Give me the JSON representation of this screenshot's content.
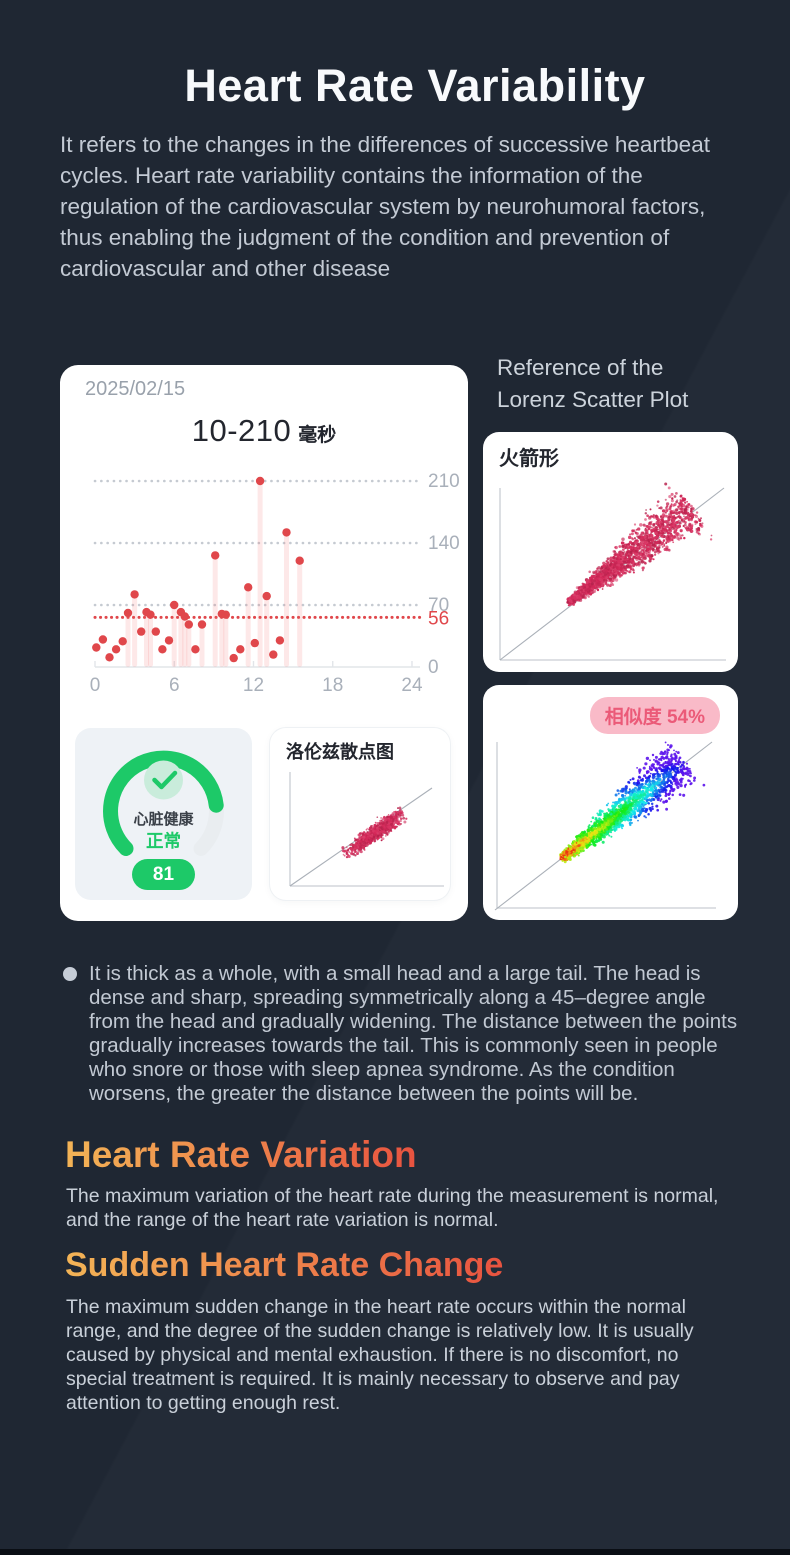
{
  "page": {
    "title": "Heart Rate Variability",
    "intro": "It refers to the changes in the differences of successive heartbeat cycles. Heart rate variability contains the information of the regulation of the cardiovascular system by neurohumoral factors, thus enabling the judgment of the condition and prevention of cardiovascular and other disease"
  },
  "colors": {
    "background": "#1f2733",
    "accent_green": "#1dc968",
    "dot_red": "#e0474b",
    "badge_pink_bg": "#f9bac8",
    "badge_pink_text": "#eb5a78",
    "heading_gradient": [
      "#f3b456",
      "#e85340"
    ],
    "grid_gray": "#c5cad1"
  },
  "hrv_card": {
    "date": "2025/02/15",
    "range_value": "10-210",
    "range_unit": "毫秒"
  },
  "gauge": {
    "label": "心脏健康",
    "status": "正常",
    "score": "81",
    "score_max": 100
  },
  "mini_lorenz": {
    "title": "洛伦兹散点图"
  },
  "reference": {
    "line1": "Reference of the",
    "line2": "Lorenz Scatter Plot"
  },
  "rocket_card": {
    "label": "火箭形"
  },
  "similarity_card": {
    "badge": "相似度 54%"
  },
  "bullet": {
    "text": "It is thick as a whole, with a small head and a large tail. The head is dense and sharp, spreading symmetrically along a 45–degree angle from the head and gradually widening. The distance between the points gradually increases towards the tail. This is commonly seen in people who snore or those with sleep apnea syndrome. As the condition worsens, the greater the distance between the points will be."
  },
  "sections": [
    {
      "heading": "Heart Rate Variation",
      "body": "The maximum variation of the heart rate during the measurement is normal, and the range of the heart rate variation is normal."
    },
    {
      "heading": "Sudden Heart Rate Change",
      "body": "The maximum sudden change in the heart rate occurs within the normal range, and the degree of the sudden change is relatively low. It is usually caused by physical and mental exhaustion. If there is no discomfort, no special treatment is required. It is mainly necessary to observe and pay attention to getting enough rest."
    }
  ],
  "chart_data": [
    {
      "id": "hrv-day",
      "type": "scatter",
      "title": "10-210 毫秒",
      "xlabel": "",
      "ylabel": "",
      "xlim": [
        0,
        24
      ],
      "ylim": [
        0,
        210
      ],
      "x_ticks": [
        0,
        6,
        12,
        18,
        24
      ],
      "y_ticks": [
        0,
        70,
        140,
        210
      ],
      "highlight_line": {
        "value": 56,
        "color": "#e0474b"
      },
      "bar_threshold": 48,
      "points": [
        [
          0.1,
          22
        ],
        [
          0.6,
          31
        ],
        [
          1.1,
          11
        ],
        [
          1.6,
          20
        ],
        [
          2.1,
          29
        ],
        [
          2.5,
          61
        ],
        [
          3.0,
          82
        ],
        [
          3.5,
          40
        ],
        [
          3.9,
          62
        ],
        [
          4.2,
          59
        ],
        [
          4.6,
          40
        ],
        [
          5.1,
          20
        ],
        [
          5.6,
          30
        ],
        [
          6.0,
          70
        ],
        [
          6.5,
          62
        ],
        [
          6.8,
          57
        ],
        [
          7.1,
          48
        ],
        [
          7.6,
          20
        ],
        [
          8.1,
          48
        ],
        [
          9.1,
          126
        ],
        [
          9.6,
          60
        ],
        [
          9.9,
          59
        ],
        [
          10.5,
          10
        ],
        [
          11.0,
          20
        ],
        [
          11.6,
          90
        ],
        [
          12.1,
          27
        ],
        [
          12.5,
          210
        ],
        [
          13.0,
          80
        ],
        [
          13.5,
          14
        ],
        [
          14.0,
          30
        ],
        [
          14.5,
          152
        ],
        [
          15.5,
          120
        ]
      ]
    },
    {
      "id": "rocket",
      "type": "scatter",
      "title": "火箭形",
      "legend": "reference rocket-shape Lorenz plot, dense sharp head widening along 45° diagonal",
      "palette": "crimson",
      "generator": {
        "seed": 7,
        "count": 2000,
        "tpow": 1.35,
        "mode": "rocket",
        "seg": [
          87,
          170,
          209,
          76
        ],
        "spread": [
          2,
          24
        ],
        "size": 1.25
      }
    },
    {
      "id": "similarity",
      "type": "scatter",
      "title": "相似度 54%",
      "legend": "user Lorenz plot colored by density, red head to violet tail",
      "palette": "rainbow",
      "generator": {
        "seed": 11,
        "count": 2200,
        "tpow": 1.5,
        "mode": "rocket",
        "seg": [
          80,
          173,
          201,
          77
        ],
        "spread": [
          2.5,
          24
        ],
        "size": 1.2
      }
    },
    {
      "id": "mini-lorenz",
      "type": "scatter",
      "title": "洛伦兹散点图",
      "legend": "small Lorenz scatter thumbnail, compact crimson ellipse on diagonal",
      "palette": "crimson",
      "generator": {
        "seed": 3,
        "count": 1000,
        "mode": "ellipse",
        "seg": [
          76,
          126,
          132,
          86
        ],
        "spread": [
          4,
          8
        ],
        "size": 1.1
      }
    }
  ]
}
